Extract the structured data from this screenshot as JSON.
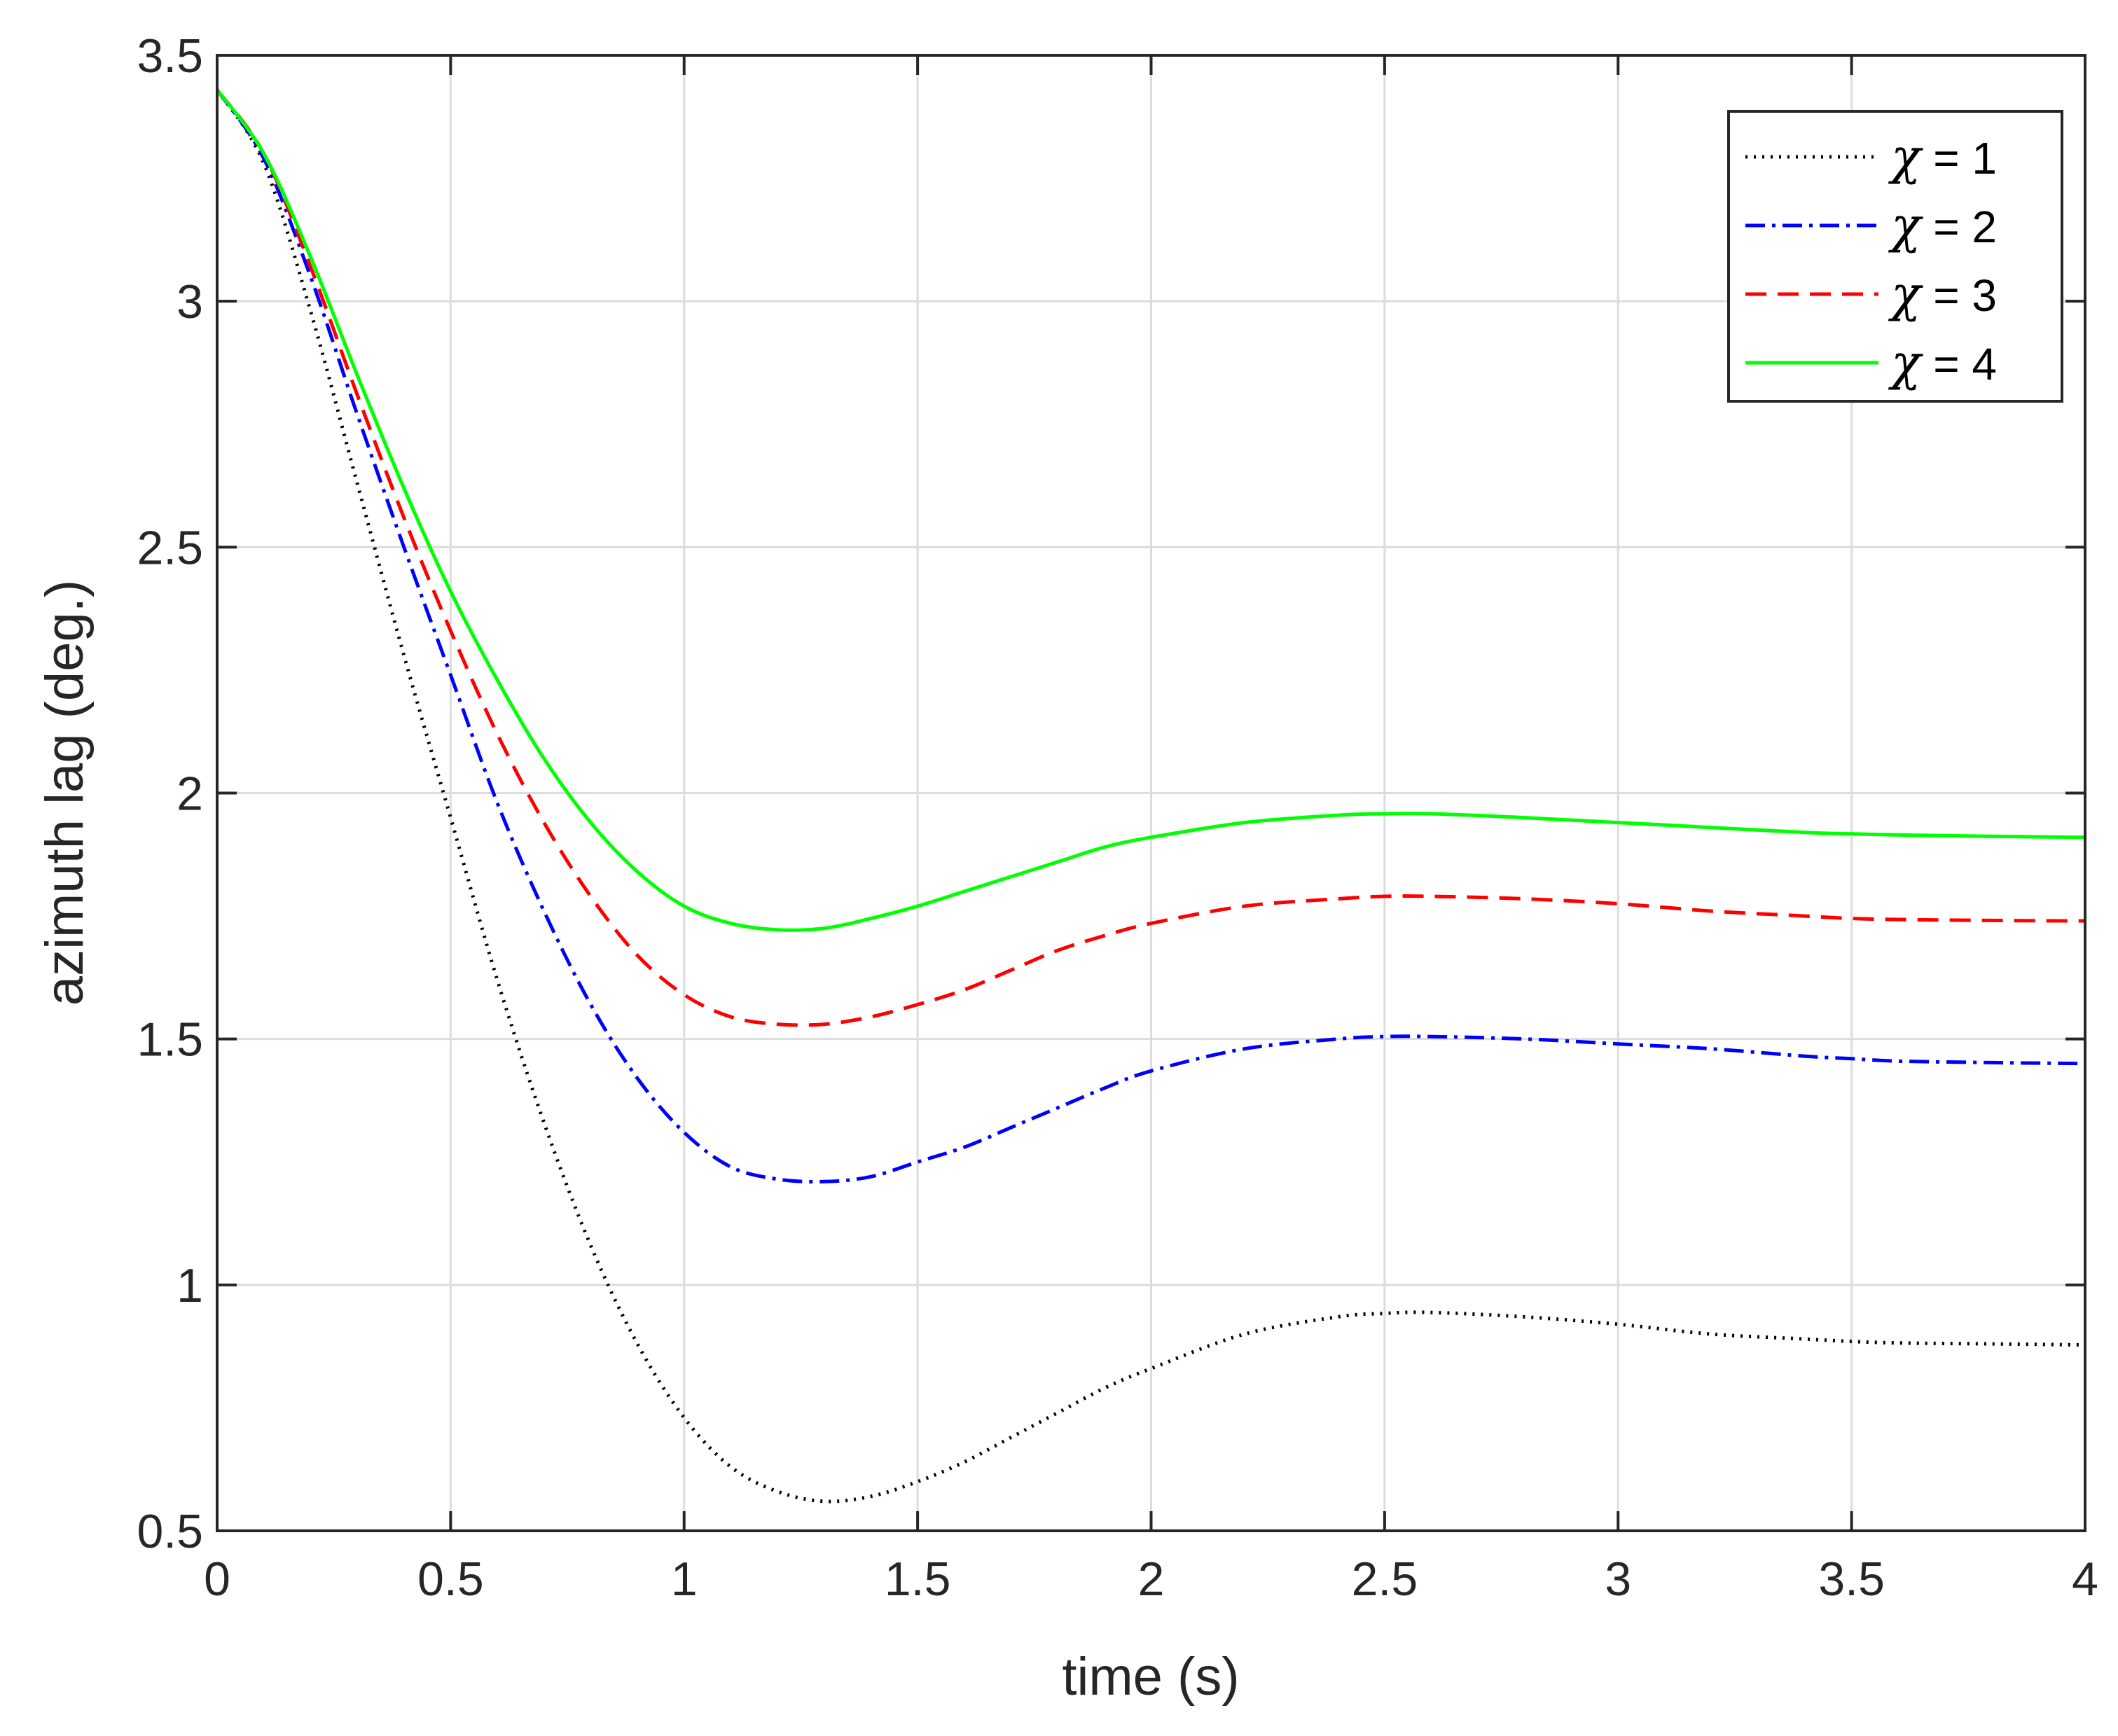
{
  "chart_data": {
    "type": "line",
    "xlabel": "time (s)",
    "ylabel": "azimuth lag (deg.)",
    "xlim": [
      0,
      4
    ],
    "ylim": [
      0.5,
      3.5
    ],
    "xticks": [
      0,
      0.5,
      1,
      1.5,
      2,
      2.5,
      3,
      3.5,
      4
    ],
    "xtick_labels": [
      "0",
      "0.5",
      "1",
      "1.5",
      "2",
      "2.5",
      "3",
      "3.5",
      "4"
    ],
    "yticks": [
      0.5,
      1,
      1.5,
      2,
      2.5,
      3,
      3.5
    ],
    "ytick_labels": [
      "0.5",
      "1",
      "1.5",
      "2",
      "2.5",
      "3",
      "3.5"
    ],
    "grid": true,
    "legend_position": "top-right",
    "x": [
      0,
      0.1,
      0.2,
      0.3,
      0.4,
      0.5,
      0.6,
      0.7,
      0.8,
      0.9,
      1.0,
      1.1,
      1.2,
      1.3,
      1.4,
      1.5,
      1.6,
      1.7,
      1.8,
      1.9,
      2.0,
      2.2,
      2.4,
      2.5,
      2.6,
      2.8,
      3.0,
      3.2,
      3.4,
      3.5,
      3.6,
      3.8,
      4.0
    ],
    "series": [
      {
        "name": "χ = 1",
        "legend_symbol": "χ",
        "legend_text": " = 1",
        "color": "#000000",
        "dash": "3,9",
        "values": [
          3.43,
          3.28,
          2.98,
          2.63,
          2.28,
          1.95,
          1.62,
          1.33,
          1.08,
          0.88,
          0.73,
          0.63,
          0.58,
          0.56,
          0.57,
          0.6,
          0.64,
          0.69,
          0.74,
          0.79,
          0.83,
          0.9,
          0.935,
          0.942,
          0.944,
          0.935,
          0.92,
          0.9,
          0.89,
          0.885,
          0.882,
          0.88,
          0.878
        ]
      },
      {
        "name": "χ = 2",
        "legend_symbol": "χ",
        "legend_text": " = 2",
        "color": "#0000ff",
        "dash": "28,10,5,10",
        "values": [
          3.43,
          3.29,
          3.05,
          2.77,
          2.5,
          2.24,
          1.98,
          1.76,
          1.57,
          1.42,
          1.31,
          1.24,
          1.215,
          1.21,
          1.22,
          1.25,
          1.28,
          1.32,
          1.36,
          1.4,
          1.435,
          1.48,
          1.5,
          1.505,
          1.505,
          1.5,
          1.49,
          1.48,
          1.465,
          1.46,
          1.455,
          1.452,
          1.45
        ]
      },
      {
        "name": "χ = 3",
        "legend_symbol": "χ",
        "legend_text": " = 3",
        "color": "#ff0000",
        "dash": "30,16",
        "values": [
          3.43,
          3.3,
          3.07,
          2.81,
          2.56,
          2.33,
          2.12,
          1.94,
          1.79,
          1.67,
          1.59,
          1.545,
          1.53,
          1.53,
          1.545,
          1.57,
          1.6,
          1.64,
          1.68,
          1.71,
          1.735,
          1.77,
          1.785,
          1.79,
          1.79,
          1.785,
          1.775,
          1.76,
          1.75,
          1.745,
          1.743,
          1.741,
          1.74
        ]
      },
      {
        "name": "χ = 4",
        "legend_symbol": "χ",
        "legend_text": " = 4",
        "color": "#00ff00",
        "dash": "",
        "values": [
          3.43,
          3.3,
          3.09,
          2.85,
          2.62,
          2.41,
          2.23,
          2.07,
          1.94,
          1.84,
          1.77,
          1.735,
          1.722,
          1.725,
          1.745,
          1.77,
          1.8,
          1.83,
          1.86,
          1.89,
          1.91,
          1.94,
          1.955,
          1.958,
          1.958,
          1.95,
          1.94,
          1.93,
          1.92,
          1.917,
          1.915,
          1.912,
          1.91
        ]
      }
    ]
  }
}
